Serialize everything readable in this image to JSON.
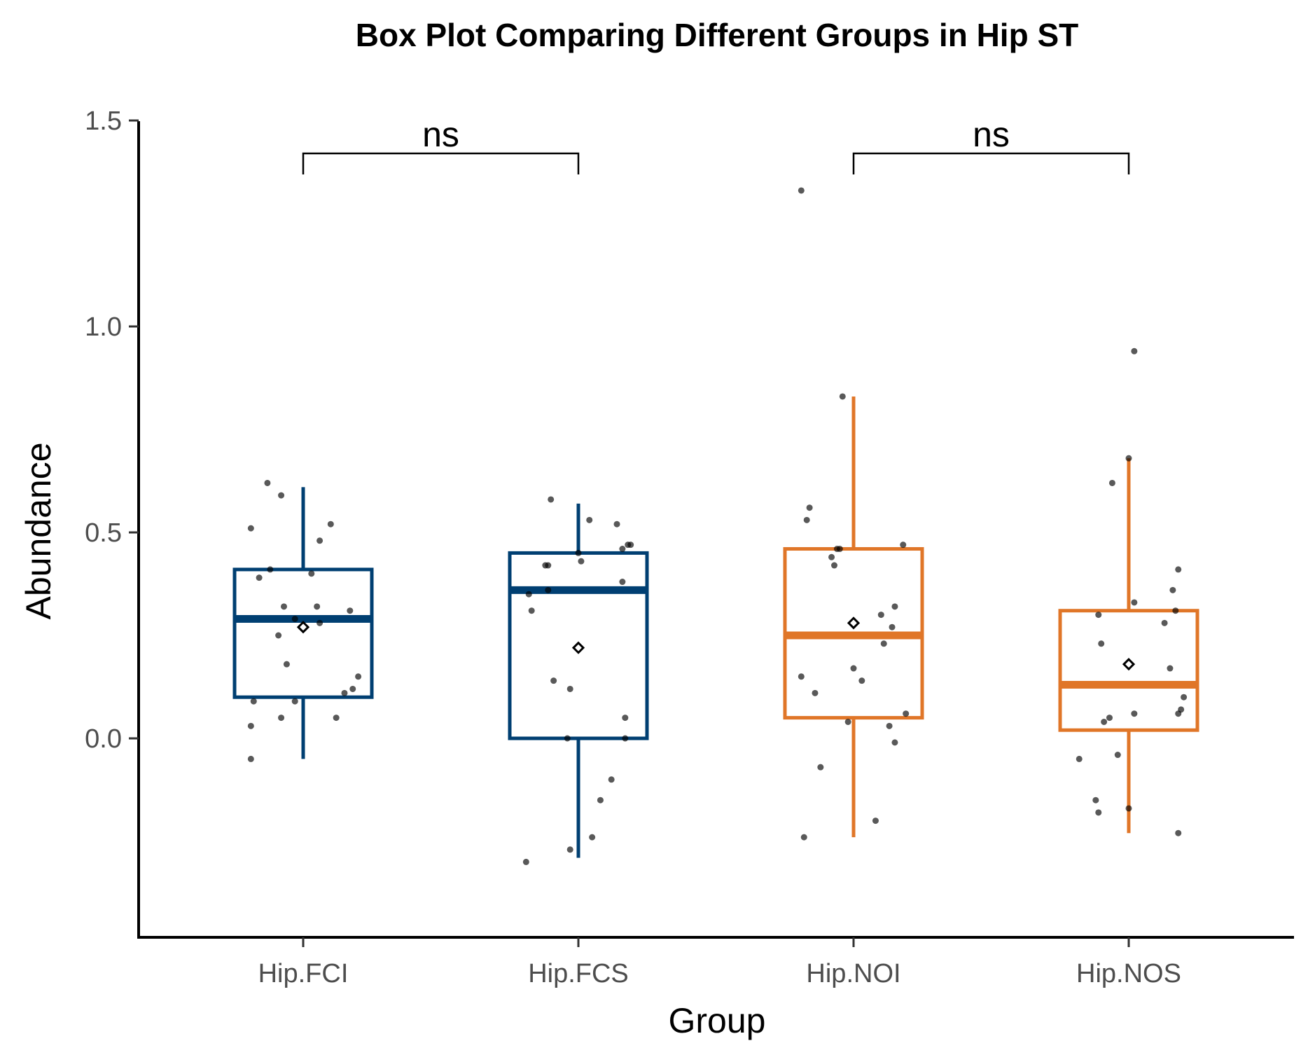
{
  "chart_data": {
    "type": "box",
    "title": "Box Plot Comparing Different Groups in Hip ST",
    "xlabel": "Group",
    "ylabel": "Abundance",
    "ylim": [
      -0.48,
      1.5
    ],
    "yticks": [
      0.0,
      0.5,
      1.0,
      1.5
    ],
    "ytick_labels": [
      "0.0",
      "0.5",
      "1.0",
      "1.5"
    ],
    "grid": false,
    "legend": "none",
    "categories": [
      "Hip.FCI",
      "Hip.FCS",
      "Hip.NOI",
      "Hip.NOS"
    ],
    "colors": [
      "#003f72",
      "#003f72",
      "#e07628",
      "#e07628"
    ],
    "boxes": [
      {
        "group": "Hip.FCI",
        "lower_whisker": -0.05,
        "q1": 0.1,
        "median": 0.29,
        "q3": 0.41,
        "upper_whisker": 0.61,
        "mean": 0.27
      },
      {
        "group": "Hip.FCS",
        "lower_whisker": -0.29,
        "q1": 0.0,
        "median": 0.36,
        "q3": 0.45,
        "upper_whisker": 0.57,
        "mean": 0.22
      },
      {
        "group": "Hip.NOI",
        "lower_whisker": -0.24,
        "q1": 0.05,
        "median": 0.25,
        "q3": 0.46,
        "upper_whisker": 0.83,
        "mean": 0.28
      },
      {
        "group": "Hip.NOS",
        "lower_whisker": -0.23,
        "q1": 0.02,
        "median": 0.13,
        "q3": 0.31,
        "upper_whisker": 0.68,
        "mean": 0.18
      }
    ],
    "points": [
      {
        "group": "Hip.FCI",
        "values": [
          0.62,
          0.59,
          0.52,
          0.51,
          0.48,
          0.41,
          0.4,
          0.39,
          0.32,
          0.32,
          0.31,
          0.29,
          0.28,
          0.25,
          0.18,
          0.15,
          0.12,
          0.11,
          0.09,
          0.09,
          0.05,
          0.05,
          0.03,
          -0.05
        ],
        "offsets": [
          -0.13,
          -0.08,
          0.1,
          -0.19,
          0.06,
          -0.12,
          0.03,
          -0.16,
          -0.07,
          0.05,
          0.17,
          -0.03,
          0.06,
          -0.09,
          -0.06,
          0.2,
          0.18,
          0.15,
          -0.18,
          -0.03,
          -0.08,
          0.12,
          -0.19,
          -0.19
        ]
      },
      {
        "group": "Hip.FCS",
        "values": [
          0.58,
          0.53,
          0.52,
          0.47,
          0.47,
          0.46,
          0.45,
          0.43,
          0.42,
          0.42,
          0.38,
          0.36,
          0.35,
          0.31,
          0.14,
          0.12,
          0.05,
          0.0,
          0.0,
          -0.1,
          -0.15,
          -0.24,
          -0.27,
          -0.3
        ],
        "offsets": [
          -0.1,
          0.04,
          0.14,
          0.19,
          0.18,
          0.16,
          0.0,
          0.01,
          -0.11,
          -0.12,
          0.16,
          -0.11,
          -0.18,
          -0.17,
          -0.09,
          -0.03,
          0.17,
          -0.04,
          0.17,
          0.12,
          0.08,
          0.05,
          -0.03,
          -0.19
        ]
      },
      {
        "group": "Hip.NOI",
        "values": [
          1.33,
          0.83,
          0.56,
          0.53,
          0.47,
          0.46,
          0.46,
          0.44,
          0.42,
          0.32,
          0.3,
          0.27,
          0.23,
          0.17,
          0.15,
          0.14,
          0.11,
          0.06,
          0.04,
          0.03,
          -0.01,
          -0.07,
          -0.2,
          -0.24
        ],
        "offsets": [
          -0.19,
          -0.04,
          -0.16,
          -0.17,
          0.18,
          -0.06,
          -0.05,
          -0.08,
          -0.07,
          0.15,
          0.1,
          0.14,
          0.11,
          0.0,
          -0.19,
          0.03,
          -0.14,
          0.19,
          -0.02,
          0.13,
          0.15,
          -0.12,
          0.08,
          -0.18
        ]
      },
      {
        "group": "Hip.NOS",
        "values": [
          0.94,
          0.68,
          0.62,
          0.41,
          0.36,
          0.33,
          0.31,
          0.3,
          0.28,
          0.23,
          0.17,
          0.1,
          0.07,
          0.06,
          0.06,
          0.05,
          0.04,
          -0.04,
          -0.05,
          -0.15,
          -0.17,
          -0.18,
          -0.23
        ],
        "offsets": [
          0.02,
          0.0,
          -0.06,
          0.18,
          0.16,
          0.02,
          0.17,
          -0.11,
          0.13,
          -0.1,
          0.15,
          0.2,
          0.19,
          0.18,
          0.02,
          -0.07,
          -0.09,
          -0.04,
          -0.18,
          -0.12,
          0.0,
          -0.11,
          0.18
        ]
      }
    ],
    "comparisons": [
      {
        "groups": [
          "Hip.FCI",
          "Hip.FCS"
        ],
        "label": "ns",
        "y": 1.42
      },
      {
        "groups": [
          "Hip.NOI",
          "Hip.NOS"
        ],
        "label": "ns",
        "y": 1.42
      }
    ]
  }
}
